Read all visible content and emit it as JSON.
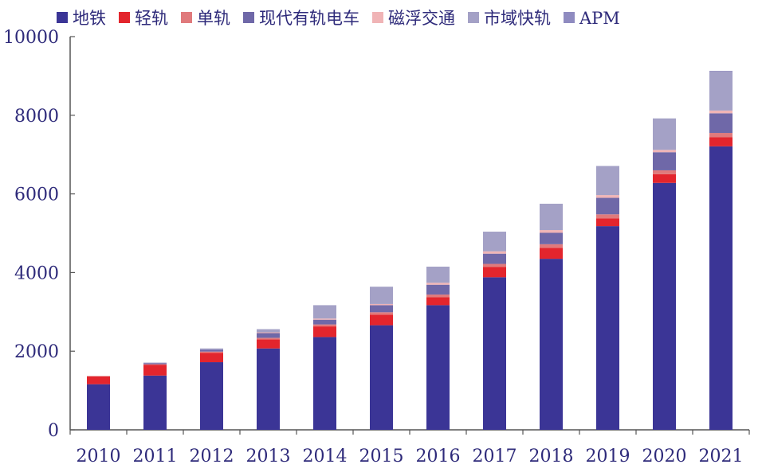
{
  "chart_data": {
    "type": "bar",
    "stacked": true,
    "categories": [
      "2010",
      "2011",
      "2012",
      "2013",
      "2014",
      "2015",
      "2016",
      "2017",
      "2018",
      "2019",
      "2020",
      "2021"
    ],
    "ylim": [
      0,
      10000
    ],
    "yticks": [
      "0",
      "2000",
      "4000",
      "6000",
      "8000",
      "10000"
    ],
    "legend_position": "top",
    "grid": false,
    "series": [
      {
        "name": "地铁",
        "color": "#3b3596",
        "values": [
          1160,
          1380,
          1720,
          2070,
          2360,
          2660,
          3170,
          3880,
          4350,
          5180,
          6280,
          7210
        ]
      },
      {
        "name": "轻轨",
        "color": "#e3252d",
        "values": [
          200,
          270,
          240,
          230,
          270,
          270,
          200,
          260,
          280,
          200,
          220,
          230
        ]
      },
      {
        "name": "单轨",
        "color": "#e07a7c",
        "values": [
          10,
          20,
          30,
          40,
          50,
          60,
          70,
          80,
          90,
          100,
          100,
          110
        ]
      },
      {
        "name": "现代有轨电车",
        "color": "#6f68a8",
        "values": [
          0,
          20,
          50,
          120,
          120,
          180,
          250,
          260,
          290,
          420,
          460,
          500
        ]
      },
      {
        "name": "磁浮交通",
        "color": "#f0b4b6",
        "values": [
          0,
          0,
          0,
          20,
          30,
          30,
          50,
          60,
          70,
          70,
          60,
          70
        ]
      },
      {
        "name": "市域快轨",
        "color": "#a4a1c6",
        "values": [
          0,
          20,
          30,
          80,
          340,
          440,
          410,
          500,
          670,
          740,
          800,
          1000
        ]
      },
      {
        "name": "APM",
        "color": "#8f8bc0",
        "values": [
          0,
          0,
          0,
          0,
          0,
          0,
          0,
          0,
          0,
          0,
          0,
          10
        ]
      }
    ]
  }
}
